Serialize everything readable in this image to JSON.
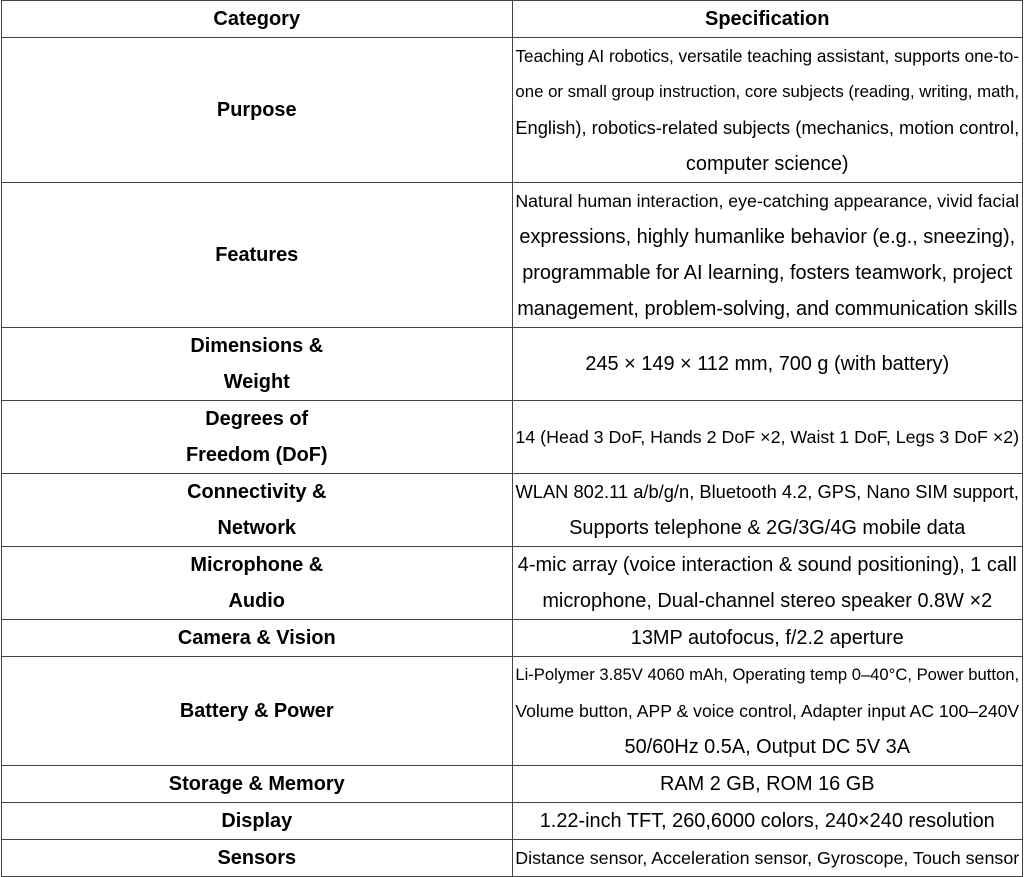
{
  "header": {
    "category": "Category",
    "specification": "Specification"
  },
  "rows": [
    {
      "category": [
        "Purpose"
      ],
      "spec": [
        "Teaching AI robotics, versatile teaching assistant, supports one-to-",
        "one or small group instruction, core subjects (reading, writing, math,",
        "English), robotics-related subjects (mechanics, motion control,",
        "computer science)"
      ]
    },
    {
      "category": [
        "Features"
      ],
      "spec": [
        "Natural human interaction, eye-catching appearance, vivid facial",
        "expressions, highly humanlike behavior (e.g., sneezing),",
        "programmable for AI learning, fosters teamwork, project",
        "management, problem-solving, and communication skills"
      ]
    },
    {
      "category": [
        "Dimensions &",
        "Weight"
      ],
      "spec": [
        "245 × 149 × 112 mm, 700 g (with battery)"
      ]
    },
    {
      "category": [
        "Degrees of",
        "Freedom (DoF)"
      ],
      "spec": [
        "14 (Head 3 DoF, Hands 2 DoF ×2, Waist 1 DoF, Legs 3 DoF ×2)"
      ]
    },
    {
      "category": [
        "Connectivity &",
        "Network"
      ],
      "spec": [
        "WLAN 802.11 a/b/g/n, Bluetooth 4.2, GPS, Nano SIM support,",
        "Supports telephone & 2G/3G/4G mobile data"
      ]
    },
    {
      "category": [
        "Microphone &",
        "Audio"
      ],
      "spec": [
        "4-mic array (voice interaction & sound positioning), 1 call",
        "microphone, Dual-channel stereo speaker 0.8W ×2"
      ]
    },
    {
      "category": [
        "Camera & Vision"
      ],
      "spec": [
        "13MP autofocus, f/2.2 aperture"
      ]
    },
    {
      "category": [
        "Battery & Power"
      ],
      "spec": [
        "Li-Polymer 3.85V 4060 mAh, Operating temp 0–40°C, Power button,",
        "Volume button, APP & voice control, Adapter input AC 100–240V",
        "50/60Hz 0.5A, Output DC 5V 3A"
      ]
    },
    {
      "category": [
        "Storage & Memory"
      ],
      "spec": [
        "RAM 2 GB, ROM 16 GB"
      ]
    },
    {
      "category": [
        "Display"
      ],
      "spec": [
        "1.22-inch TFT, 260,6000 colors, 240×240 resolution"
      ]
    },
    {
      "category": [
        "Sensors"
      ],
      "spec": [
        "Distance sensor, Acceleration sensor, Gyroscope, Touch sensor"
      ]
    }
  ]
}
